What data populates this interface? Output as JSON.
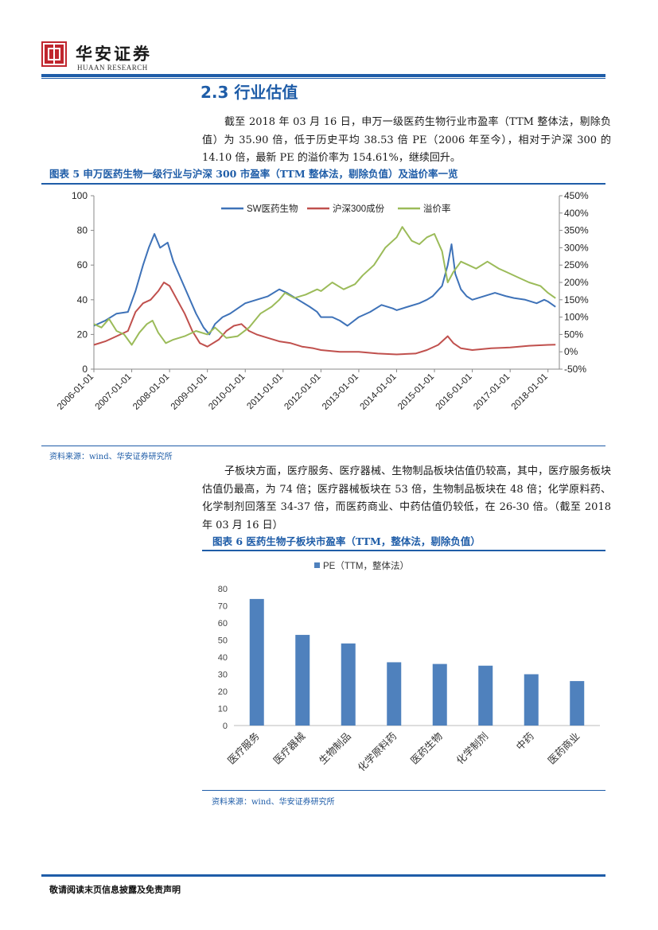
{
  "header": {
    "logo_mark": "华安",
    "brand_cn": "华安证券",
    "brand_en": "HUAAN RESEARCH"
  },
  "section": {
    "title": "2.3 行业估值"
  },
  "paragraphs": {
    "p1": "截至 2018 年 03 月 16 日，申万一级医药生物行业市盈率（TTM 整体法，剔除负值）为 35.90 倍，低于历史平均 38.53 倍 PE（2006 年至今），相对于沪深 300 的 14.10 倍，最新 PE 的溢价率为 154.61%，继续回升。",
    "p2": "子板块方面，医疗服务、医疗器械、生物制品板块估值仍较高，其中，医疗服务板块估值仍最高，为 74 倍；医疗器械板块在 53 倍，生物制品板块在 48 倍；化学原料药、化学制剂回落至 34-37 倍，而医药商业、中药估值仍较低，在 26-30 倍。（截至 2018 年 03 月 16 日）"
  },
  "figure5": {
    "title": "图表 5 申万医药生物一级行业与沪深 300 市盈率（TTM 整体法，剔除负值）及溢价率一览",
    "source": "资料来源：wind、华安证券研究所"
  },
  "figure6": {
    "title": "图表 6 医药生物子板块市盈率（TTM，整体法，剔除负值）",
    "source": "资料来源：wind、华安证券研究所"
  },
  "footer": {
    "text": "敬请阅读末页信息披露及免责声明"
  },
  "chart_data": [
    {
      "type": "line",
      "legend_position": "top",
      "x_ticks": [
        "2006-01-01",
        "2007-01-01",
        "2008-01-01",
        "2009-01-01",
        "2010-01-01",
        "2011-01-01",
        "2012-01-01",
        "2013-01-01",
        "2014-01-01",
        "2015-01-01",
        "2016-01-01",
        "2017-01-01",
        "2018-01-01"
      ],
      "y_left": {
        "ticks": [
          "0",
          "20",
          "40",
          "60",
          "80",
          "100"
        ],
        "range": [
          0,
          100
        ]
      },
      "y_right": {
        "ticks": [
          "-50%",
          "0%",
          "50%",
          "100%",
          "150%",
          "200%",
          "250%",
          "300%",
          "350%",
          "400%",
          "450%"
        ],
        "range": [
          -50,
          450
        ]
      },
      "grid": false,
      "series": [
        {
          "name": "SW医药生物",
          "axis": "left",
          "color": "#3e72b8",
          "points": [
            [
              2006.0,
              25
            ],
            [
              2006.3,
              28
            ],
            [
              2006.6,
              32
            ],
            [
              2006.9,
              33
            ],
            [
              2007.1,
              45
            ],
            [
              2007.3,
              60
            ],
            [
              2007.45,
              70
            ],
            [
              2007.6,
              78
            ],
            [
              2007.75,
              70
            ],
            [
              2007.95,
              73
            ],
            [
              2008.1,
              62
            ],
            [
              2008.3,
              52
            ],
            [
              2008.5,
              42
            ],
            [
              2008.7,
              32
            ],
            [
              2008.9,
              24
            ],
            [
              2009.05,
              20
            ],
            [
              2009.2,
              26
            ],
            [
              2009.4,
              30
            ],
            [
              2009.6,
              32
            ],
            [
              2009.8,
              35
            ],
            [
              2010.0,
              38
            ],
            [
              2010.3,
              40
            ],
            [
              2010.6,
              42
            ],
            [
              2010.9,
              46
            ],
            [
              2011.1,
              44
            ],
            [
              2011.4,
              40
            ],
            [
              2011.7,
              36
            ],
            [
              2011.9,
              33
            ],
            [
              2012.0,
              30
            ],
            [
              2012.3,
              30
            ],
            [
              2012.5,
              28
            ],
            [
              2012.7,
              25
            ],
            [
              2013.0,
              30
            ],
            [
              2013.3,
              33
            ],
            [
              2013.6,
              37
            ],
            [
              2013.9,
              35
            ],
            [
              2014.0,
              34
            ],
            [
              2014.3,
              36
            ],
            [
              2014.6,
              38
            ],
            [
              2014.8,
              40
            ],
            [
              2014.95,
              42
            ],
            [
              2015.2,
              48
            ],
            [
              2015.35,
              60
            ],
            [
              2015.45,
              72
            ],
            [
              2015.55,
              55
            ],
            [
              2015.7,
              46
            ],
            [
              2015.85,
              42
            ],
            [
              2016.0,
              40
            ],
            [
              2016.3,
              42
            ],
            [
              2016.6,
              44
            ],
            [
              2016.9,
              42
            ],
            [
              2017.1,
              41
            ],
            [
              2017.4,
              40
            ],
            [
              2017.7,
              38
            ],
            [
              2017.9,
              40
            ],
            [
              2018.0,
              39
            ],
            [
              2018.2,
              35.9
            ]
          ]
        },
        {
          "name": "沪深300成份",
          "axis": "left",
          "color": "#c0504d",
          "points": [
            [
              2006.0,
              14
            ],
            [
              2006.3,
              16
            ],
            [
              2006.6,
              19
            ],
            [
              2006.9,
              22
            ],
            [
              2007.1,
              33
            ],
            [
              2007.3,
              38
            ],
            [
              2007.5,
              40
            ],
            [
              2007.7,
              45
            ],
            [
              2007.85,
              50
            ],
            [
              2008.0,
              48
            ],
            [
              2008.2,
              40
            ],
            [
              2008.4,
              32
            ],
            [
              2008.6,
              22
            ],
            [
              2008.8,
              15
            ],
            [
              2009.0,
              13
            ],
            [
              2009.3,
              17
            ],
            [
              2009.5,
              22
            ],
            [
              2009.7,
              25
            ],
            [
              2009.9,
              26
            ],
            [
              2010.1,
              22
            ],
            [
              2010.3,
              20
            ],
            [
              2010.6,
              18
            ],
            [
              2010.9,
              16
            ],
            [
              2011.2,
              15
            ],
            [
              2011.5,
              13
            ],
            [
              2011.8,
              12
            ],
            [
              2012.0,
              11
            ],
            [
              2012.5,
              10
            ],
            [
              2013.0,
              10
            ],
            [
              2013.5,
              9
            ],
            [
              2014.0,
              8.5
            ],
            [
              2014.5,
              9
            ],
            [
              2014.8,
              11
            ],
            [
              2015.1,
              14
            ],
            [
              2015.35,
              19
            ],
            [
              2015.5,
              15
            ],
            [
              2015.7,
              12
            ],
            [
              2016.0,
              11
            ],
            [
              2016.5,
              12
            ],
            [
              2017.0,
              12.5
            ],
            [
              2017.5,
              13.5
            ],
            [
              2018.0,
              14
            ],
            [
              2018.2,
              14.1
            ]
          ]
        },
        {
          "name": "溢价率",
          "axis": "right",
          "color": "#9bbb59",
          "points": [
            [
              2006.0,
              80
            ],
            [
              2006.2,
              70
            ],
            [
              2006.4,
              95
            ],
            [
              2006.6,
              60
            ],
            [
              2006.8,
              50
            ],
            [
              2007.0,
              20
            ],
            [
              2007.2,
              55
            ],
            [
              2007.4,
              80
            ],
            [
              2007.55,
              90
            ],
            [
              2007.7,
              55
            ],
            [
              2007.9,
              25
            ],
            [
              2008.1,
              35
            ],
            [
              2008.4,
              45
            ],
            [
              2008.7,
              60
            ],
            [
              2009.0,
              50
            ],
            [
              2009.2,
              70
            ],
            [
              2009.5,
              40
            ],
            [
              2009.8,
              45
            ],
            [
              2010.1,
              70
            ],
            [
              2010.4,
              110
            ],
            [
              2010.7,
              130
            ],
            [
              2010.9,
              150
            ],
            [
              2011.05,
              170
            ],
            [
              2011.3,
              155
            ],
            [
              2011.6,
              165
            ],
            [
              2011.9,
              180
            ],
            [
              2012.0,
              175
            ],
            [
              2012.3,
              200
            ],
            [
              2012.6,
              180
            ],
            [
              2012.9,
              195
            ],
            [
              2013.1,
              220
            ],
            [
              2013.4,
              250
            ],
            [
              2013.7,
              300
            ],
            [
              2013.9,
              320
            ],
            [
              2014.0,
              330
            ],
            [
              2014.15,
              360
            ],
            [
              2014.4,
              320
            ],
            [
              2014.6,
              310
            ],
            [
              2014.8,
              330
            ],
            [
              2015.0,
              340
            ],
            [
              2015.2,
              290
            ],
            [
              2015.35,
              200
            ],
            [
              2015.5,
              230
            ],
            [
              2015.7,
              260
            ],
            [
              2015.9,
              250
            ],
            [
              2016.1,
              240
            ],
            [
              2016.4,
              260
            ],
            [
              2016.7,
              240
            ],
            [
              2016.9,
              230
            ],
            [
              2017.2,
              215
            ],
            [
              2017.5,
              200
            ],
            [
              2017.8,
              190
            ],
            [
              2018.0,
              170
            ],
            [
              2018.2,
              154.61
            ]
          ]
        }
      ]
    },
    {
      "type": "bar",
      "legend": [
        "PE（TTM，整体法）"
      ],
      "legend_position": "top",
      "categories": [
        "医疗服务",
        "医疗器械",
        "生物制品",
        "化学原料药",
        "医药生物",
        "化学制剂",
        "中药",
        "医药商业"
      ],
      "series": [
        {
          "name": "PE（TTM，整体法）",
          "values": [
            74,
            53,
            48,
            37,
            36,
            35,
            30,
            26
          ],
          "color": "#4f81bd"
        }
      ],
      "ylim": [
        0,
        80
      ],
      "y_ticks": [
        "0",
        "10",
        "20",
        "30",
        "40",
        "50",
        "60",
        "70",
        "80"
      ],
      "grid": false
    }
  ]
}
